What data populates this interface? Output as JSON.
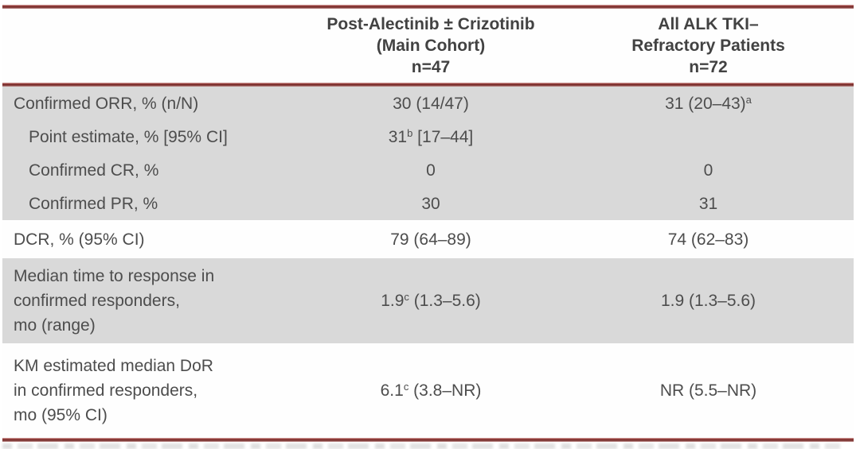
{
  "table": {
    "header": {
      "col1": "",
      "col2": "Post-Alectinib ± Crizotinib\n(Main Cohort)\nn=47",
      "col3": "All ALK TKI–\nRefractory Patients\nn=72"
    },
    "rows": [
      {
        "label": "Confirmed ORR, % (n/N)",
        "c2": {
          "pre": "30 (14/47)",
          "sup": "",
          "post": ""
        },
        "c3": {
          "pre": "31 (20–43)",
          "sup": "a",
          "post": ""
        }
      },
      {
        "label": "Point estimate, % [95% CI]",
        "c2": {
          "pre": "31",
          "sup": "b",
          "post": " [17–44]"
        },
        "c3": {
          "pre": "",
          "sup": "",
          "post": ""
        }
      },
      {
        "label": "Confirmed CR, %",
        "c2": {
          "pre": "0",
          "sup": "",
          "post": ""
        },
        "c3": {
          "pre": "0",
          "sup": "",
          "post": ""
        }
      },
      {
        "label": "Confirmed PR, %",
        "c2": {
          "pre": "30",
          "sup": "",
          "post": ""
        },
        "c3": {
          "pre": "31",
          "sup": "",
          "post": ""
        }
      },
      {
        "label": "DCR, % (95% CI)",
        "c2": {
          "pre": "79 (64–89)",
          "sup": "",
          "post": ""
        },
        "c3": {
          "pre": "74 (62–83)",
          "sup": "",
          "post": ""
        }
      },
      {
        "label": "Median time to response in\nconfirmed responders,\nmo (range)",
        "c2": {
          "pre": "1.9",
          "sup": "c",
          "post": " (1.3–5.6)"
        },
        "c3": {
          "pre": "1.9 (1.3–5.6)",
          "sup": "",
          "post": ""
        }
      },
      {
        "label": "KM estimated median DoR\nin confirmed responders,\nmo (95% CI)",
        "c2": {
          "pre": "6.1",
          "sup": "c",
          "post": " (3.8–NR)"
        },
        "c3": {
          "pre": "NR (5.5–NR)",
          "sup": "",
          "post": ""
        }
      }
    ],
    "colors": {
      "rule_red": "#8a3230",
      "band_gray": "#d9d9d9",
      "text_gray": "#4d4d4d"
    }
  }
}
